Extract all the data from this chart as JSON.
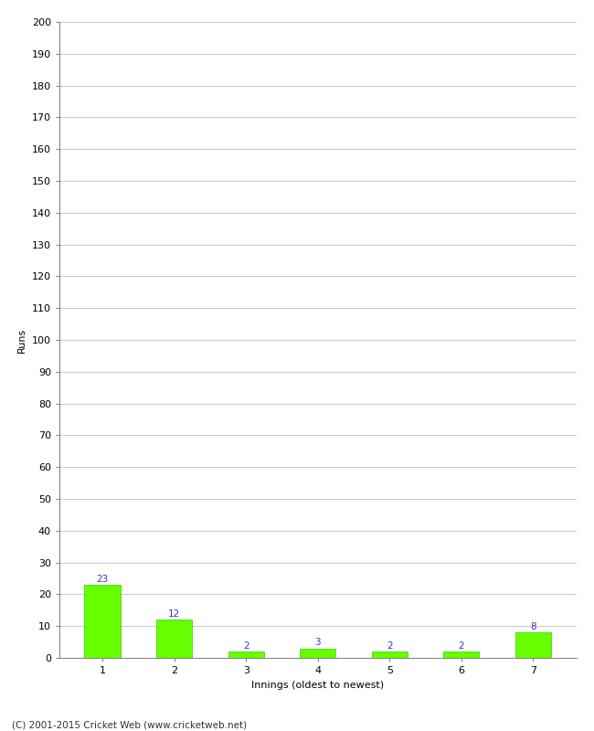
{
  "categories": [
    "1",
    "2",
    "3",
    "4",
    "5",
    "6",
    "7"
  ],
  "values": [
    23,
    12,
    2,
    3,
    2,
    2,
    8
  ],
  "bar_color": "#66ff00",
  "bar_edge_color": "#33cc00",
  "label_color": "#3333cc",
  "xlabel": "Innings (oldest to newest)",
  "ylabel": "Runs",
  "ylim": [
    0,
    200
  ],
  "yticks": [
    0,
    10,
    20,
    30,
    40,
    50,
    60,
    70,
    80,
    90,
    100,
    110,
    120,
    130,
    140,
    150,
    160,
    170,
    180,
    190,
    200
  ],
  "footer": "(C) 2001-2015 Cricket Web (www.cricketweb.net)",
  "background_color": "#ffffff",
  "grid_color": "#cccccc",
  "label_fontsize": 7.5,
  "axis_tick_fontsize": 8,
  "axis_label_fontsize": 8,
  "footer_fontsize": 7.5,
  "bar_width": 0.5
}
